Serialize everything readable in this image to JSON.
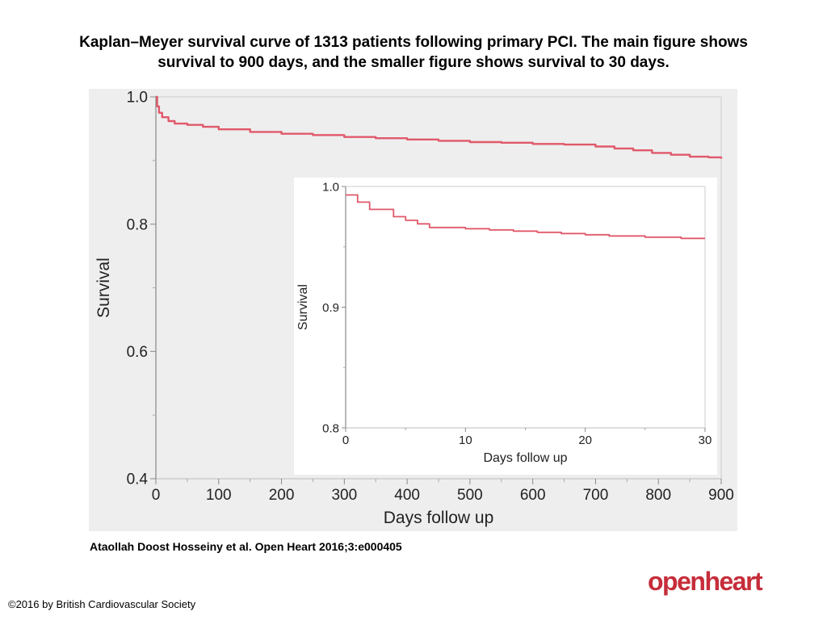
{
  "title": {
    "line1": "Kaplan–Meyer survival curve of 1313 patients following primary PCI. The main figure shows",
    "line2": "survival to 900 days, and the smaller figure shows survival to 30 days."
  },
  "citation": "Ataollah Doost Hosseiny et al. Open Heart 2016;3:e000405",
  "copyright": "©2016 by British Cardiovascular Society",
  "logo": "openheart",
  "colors": {
    "curve": "#e0596a",
    "panel": "#eeeeee",
    "logo": "#c62d3a"
  },
  "chart_data": [
    {
      "type": "line",
      "title": "",
      "xlabel": "Days follow up",
      "ylabel": "Survival",
      "xlim": [
        0,
        900
      ],
      "ylim": [
        0.4,
        1.0
      ],
      "xticks": [
        0,
        100,
        200,
        300,
        400,
        500,
        600,
        700,
        800,
        900
      ],
      "yticks": [
        "0.4",
        "0.6",
        "0.8",
        "1.0"
      ],
      "grid": false,
      "series": [
        {
          "x": [
            0,
            2,
            5,
            10,
            20,
            30,
            50,
            75,
            100,
            150,
            200,
            250,
            300,
            350,
            400,
            450,
            500,
            550,
            600,
            650,
            700,
            730,
            760,
            790,
            820,
            850,
            880,
            900
          ],
          "y": [
            1.0,
            0.985,
            0.975,
            0.968,
            0.962,
            0.958,
            0.956,
            0.953,
            0.949,
            0.945,
            0.942,
            0.94,
            0.937,
            0.935,
            0.933,
            0.931,
            0.929,
            0.928,
            0.926,
            0.925,
            0.922,
            0.919,
            0.916,
            0.912,
            0.909,
            0.906,
            0.905,
            0.903
          ]
        }
      ]
    },
    {
      "type": "line",
      "title": "",
      "xlabel": "Days follow up",
      "ylabel": "Survival",
      "xlim": [
        0,
        30
      ],
      "ylim": [
        0.8,
        1.0
      ],
      "xticks": [
        0,
        10,
        20,
        30
      ],
      "yticks": [
        "0.8",
        "0.9",
        "1.0"
      ],
      "grid": false,
      "series": [
        {
          "x": [
            0,
            1,
            2,
            4,
            5,
            6,
            7,
            9,
            10,
            12,
            14,
            16,
            18,
            20,
            22,
            25,
            28,
            30
          ],
          "y": [
            0.993,
            0.987,
            0.981,
            0.975,
            0.972,
            0.969,
            0.966,
            0.966,
            0.965,
            0.964,
            0.963,
            0.962,
            0.961,
            0.96,
            0.959,
            0.958,
            0.957,
            0.957
          ]
        }
      ]
    }
  ]
}
